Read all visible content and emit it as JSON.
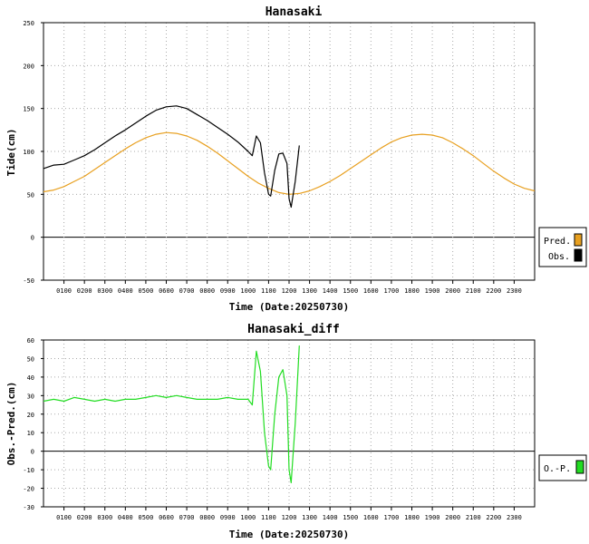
{
  "chart_data": [
    {
      "type": "line",
      "title": "Hanasaki",
      "xlabel": "Time (Date:20250730)",
      "ylabel": "Tide(cm)",
      "xlim": [
        0,
        24
      ],
      "ylim": [
        -50,
        250
      ],
      "y_ticks": [
        -50,
        0,
        50,
        100,
        150,
        200,
        250
      ],
      "x_tick_labels": [
        "0100",
        "0200",
        "0300",
        "0400",
        "0500",
        "0600",
        "0700",
        "0800",
        "0900",
        "1000",
        "1100",
        "1200",
        "1300",
        "1400",
        "1500",
        "1600",
        "1700",
        "1800",
        "1900",
        "2000",
        "2100",
        "2200",
        "2300"
      ],
      "grid": true,
      "legend": "right",
      "series": [
        {
          "name": "Pred.",
          "color": "#e8a020",
          "x": [
            0,
            0.5,
            1,
            1.5,
            2,
            2.5,
            3,
            3.5,
            4,
            4.5,
            5,
            5.5,
            6,
            6.5,
            7,
            7.5,
            8,
            8.5,
            9,
            9.5,
            10,
            10.5,
            11,
            11.5,
            12,
            12.5,
            13,
            13.5,
            14,
            14.5,
            15,
            15.5,
            16,
            16.5,
            17,
            17.5,
            18,
            18.5,
            19,
            19.5,
            20,
            20.5,
            21,
            21.5,
            22,
            22.5,
            23,
            23.5,
            24
          ],
          "values": [
            53,
            55,
            59,
            65,
            71,
            79,
            87,
            95,
            103,
            110,
            116,
            120,
            122,
            121,
            118,
            113,
            106,
            98,
            89,
            80,
            71,
            63,
            57,
            52,
            50,
            51,
            54,
            59,
            65,
            72,
            80,
            88,
            96,
            104,
            111,
            116,
            119,
            120,
            119,
            116,
            110,
            103,
            95,
            86,
            77,
            69,
            62,
            57,
            54
          ]
        },
        {
          "name": "Obs.",
          "color": "#000000",
          "x": [
            0,
            0.5,
            1,
            1.5,
            2,
            2.5,
            3,
            3.5,
            4,
            4.5,
            5,
            5.5,
            6,
            6.5,
            7,
            7.5,
            8,
            8.5,
            9,
            9.5,
            10,
            10.2,
            10.4,
            10.6,
            10.8,
            11,
            11.1,
            11.3,
            11.5,
            11.7,
            11.9,
            12,
            12.1,
            12.3,
            12.5
          ],
          "values": [
            80,
            84,
            85,
            90,
            95,
            102,
            110,
            118,
            125,
            133,
            141,
            148,
            152,
            153,
            150,
            143,
            136,
            128,
            120,
            111,
            100,
            95,
            118,
            110,
            75,
            50,
            48,
            78,
            97,
            98,
            86,
            45,
            35,
            65,
            107
          ]
        }
      ]
    },
    {
      "type": "line",
      "title": "Hanasaki_diff",
      "xlabel": "Time (Date:20250730)",
      "ylabel": "Obs.-Pred.(cm)",
      "xlim": [
        0,
        24
      ],
      "ylim": [
        -30,
        60
      ],
      "y_ticks": [
        -30,
        -20,
        -10,
        0,
        10,
        20,
        30,
        40,
        50,
        60
      ],
      "x_tick_labels": [
        "0100",
        "0200",
        "0300",
        "0400",
        "0500",
        "0600",
        "0700",
        "0800",
        "0900",
        "1000",
        "1100",
        "1200",
        "1300",
        "1400",
        "1500",
        "1600",
        "1700",
        "1800",
        "1900",
        "2000",
        "2100",
        "2200",
        "2300"
      ],
      "grid": true,
      "legend": "right",
      "series": [
        {
          "name": "O.-P.",
          "color": "#22dd22",
          "x": [
            0,
            0.5,
            1,
            1.5,
            2,
            2.5,
            3,
            3.5,
            4,
            4.5,
            5,
            5.5,
            6,
            6.5,
            7,
            7.5,
            8,
            8.5,
            9,
            9.5,
            10,
            10.2,
            10.4,
            10.6,
            10.8,
            11,
            11.1,
            11.3,
            11.5,
            11.7,
            11.9,
            12,
            12.1,
            12.3,
            12.5
          ],
          "values": [
            27,
            28,
            27,
            29,
            28,
            27,
            28,
            27,
            28,
            28,
            29,
            30,
            29,
            30,
            29,
            28,
            28,
            28,
            29,
            28,
            28,
            25,
            54,
            43,
            10,
            -8,
            -10,
            20,
            40,
            44,
            30,
            -10,
            -17,
            15,
            57
          ]
        }
      ]
    }
  ]
}
